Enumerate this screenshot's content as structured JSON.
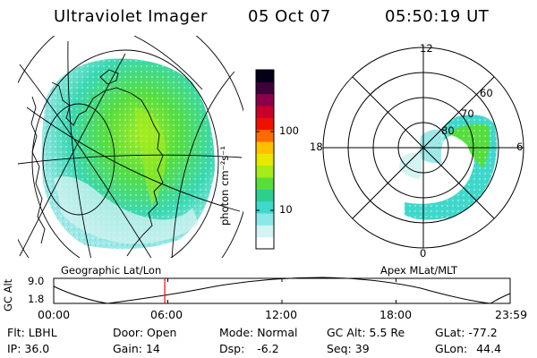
{
  "header": {
    "instrument": "Ultraviolet Imager",
    "date": "05 Oct 07",
    "time": "05:50:19 UT"
  },
  "colors": {
    "background": "#ffffff",
    "foreground": "#000000",
    "time_marker": "#ff0000"
  },
  "left_map": {
    "label": "Geographic Lat/Lon"
  },
  "right_map": {
    "label": "Apex MLat/MLT",
    "mlt_labels": [
      "12",
      "18",
      "6",
      "0"
    ],
    "lat_labels": [
      "80",
      "70",
      "60"
    ]
  },
  "colorbar": {
    "unit_label": "photon cm⁻²s⁻¹",
    "scale": "log",
    "ticks": [
      {
        "label": "100",
        "value": 100
      },
      {
        "label": "10",
        "value": 10
      }
    ],
    "colors": [
      "#ffffff",
      "#d4f3f3",
      "#8ae8e8",
      "#40d8cc",
      "#2ccf8e",
      "#56de3c",
      "#a6ec18",
      "#e8e800",
      "#ffc000",
      "#ff6a00",
      "#f01000",
      "#c8002a",
      "#8a004a",
      "#40003a",
      "#050018"
    ]
  },
  "timeline": {
    "axis_label": "GC Alt",
    "y_labels": [
      "9.0",
      "1.8"
    ],
    "x_labels": [
      "00:00",
      "06:00",
      "12:00",
      "18:00",
      "23:59"
    ],
    "current_time_hours": 5.84
  },
  "info": {
    "row1": [
      {
        "label": "Flt:",
        "value": "LBHL"
      },
      {
        "label": "Door:",
        "value": "Open"
      },
      {
        "label": "Mode:",
        "value": "Normal"
      },
      {
        "label": "GC Alt:",
        "value": "5.5 Re"
      },
      {
        "label": "GLat:",
        "value": "-77.2"
      }
    ],
    "row2": [
      {
        "label": "IP:",
        "value": "36.0"
      },
      {
        "label": "Gain:",
        "value": "14"
      },
      {
        "label": "Dsp:",
        "value": "-6.2"
      },
      {
        "label": "Seq:",
        "value": "39"
      },
      {
        "label": "GLon:",
        "value": "44.4"
      }
    ]
  }
}
